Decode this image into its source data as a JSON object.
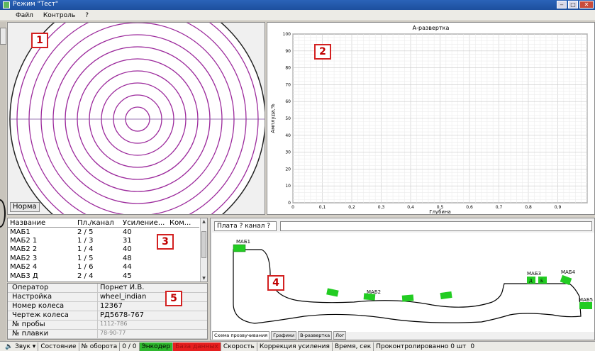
{
  "window": {
    "title": "Режим \"Тест\""
  },
  "menu": [
    "Файл",
    "Контроль",
    "?"
  ],
  "markers": {
    "m1": "1",
    "m2": "2",
    "m3": "3",
    "m4": "4",
    "m5": "5"
  },
  "panel1": {
    "status_button": "Норма"
  },
  "chart_data": {
    "type": "line",
    "title": "А-развертка",
    "xlabel": "Глубина",
    "ylabel": "Амплуда,%",
    "xlim": [
      0,
      1
    ],
    "ylim": [
      0,
      100
    ],
    "x_ticks": [
      "0",
      "0,1",
      "0,2",
      "0,3",
      "0,4",
      "0,5",
      "0,6",
      "0,7",
      "0,8",
      "0,9"
    ],
    "y_ticks": [
      "0",
      "10",
      "20",
      "30",
      "40",
      "50",
      "60",
      "70",
      "80",
      "90",
      "100"
    ],
    "grid": true,
    "series": []
  },
  "table": {
    "headers": [
      "Название",
      "Пл./канал",
      "Усиление...",
      "Ком..."
    ],
    "rows": [
      [
        "МАБ1",
        "2 / 5",
        "40",
        ""
      ],
      [
        "МАБ2 1",
        "1 / 3",
        "31",
        ""
      ],
      [
        "МАБ2 2",
        "1 / 4",
        "40",
        ""
      ],
      [
        "МАБ2 3",
        "1 / 5",
        "48",
        ""
      ],
      [
        "МАБ2 4",
        "1 / 6",
        "44",
        ""
      ],
      [
        "МАБ3 Д",
        "2 / 4",
        "45",
        ""
      ]
    ]
  },
  "info": [
    {
      "label": "Оператор",
      "value": "Порнет И.В."
    },
    {
      "label": "Настройка",
      "value": "wheel_indian"
    },
    {
      "label": "Номер колеса",
      "value": "12367"
    },
    {
      "label": "Чертеж колеса",
      "value": "РД5678-767"
    },
    {
      "label": "№ пробы",
      "value": "1112-786"
    },
    {
      "label": "№ плавки",
      "value": "78-90-77"
    }
  ],
  "scheme": {
    "plata_field": "Плата ? канал ?",
    "labels": {
      "mab1": "МАБ1",
      "mab2": "МАБ2",
      "mab3": "МАБ3",
      "mab4": "МАБ4",
      "mab5": "МАБ5",
      "d": "Д",
      "b": "Б"
    },
    "sensor_color": "#22cc22",
    "profile_color": "#000000",
    "tabs": [
      "Схема прозвучивания",
      "Графики",
      "В-развертка",
      "Лог"
    ]
  },
  "status": {
    "sound": "Звук",
    "state": "Состояние",
    "rev_label": "№ оборота",
    "rev_value": "0 / 0",
    "encoder": "Энкодер",
    "database": "База данных",
    "speed": "Скорость",
    "gain_corr": "Коррекция усиления",
    "time": "Время, сек",
    "checked": "Проконтролированно 0 шт",
    "count": "0"
  },
  "colors": {
    "rings": "#9c2a9c",
    "accent_green": "#2eb82e",
    "accent_red": "#e61e1e",
    "marker": "#d32020"
  }
}
